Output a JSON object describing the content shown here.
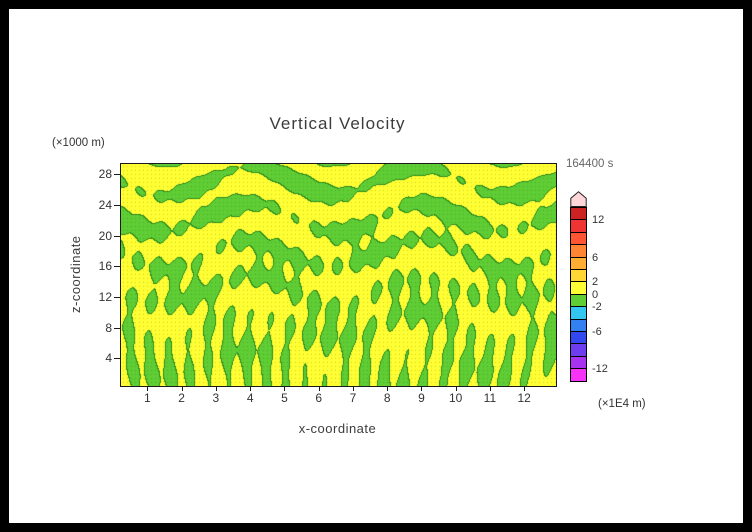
{
  "colors": {
    "frame": "#000000",
    "background": "#ffffff"
  },
  "chart": {
    "title": "Vertical Velocity",
    "time_label": "164400 s",
    "x_axis": {
      "label": "x-coordinate",
      "unit": "(×1E4 m)",
      "ticks": [
        "1",
        "2",
        "3",
        "4",
        "5",
        "6",
        "7",
        "8",
        "9",
        "10",
        "11",
        "12"
      ],
      "min": 0.2,
      "max": 12.9
    },
    "y_axis": {
      "label": "z-coordinate",
      "unit": "(×1000 m)",
      "ticks": [
        "4",
        "8",
        "12",
        "16",
        "20",
        "24",
        "28"
      ],
      "min": 0.5,
      "max": 29.5
    },
    "colorbar": {
      "tick_labels": [
        "12",
        "6",
        "2",
        "0",
        "-2",
        "-6",
        "-12"
      ],
      "tick_values": [
        12,
        6,
        2,
        0,
        -2,
        -6,
        -12
      ],
      "level_min": -14,
      "level_max": 14,
      "level_step": 2,
      "arrow_color": "#ffd6da",
      "colors_bottom_to_top": [
        "#f733f7",
        "#a733f0",
        "#6d3df0",
        "#3348f0",
        "#3380f0",
        "#33c6f0",
        "#5fce35",
        "#ffff33",
        "#ffd633",
        "#ffad33",
        "#ff8433",
        "#ff5533",
        "#f03333",
        "#cc2222"
      ]
    },
    "field_colors": {
      "positive": "#ffff33",
      "negative": "#5fce35",
      "contour_line": "#2e8f1f"
    }
  },
  "chart_data": {
    "type": "heatmap",
    "title": "Vertical Velocity",
    "time_label": "164400 s",
    "xlabel": "x-coordinate",
    "xunit": "(×1E4 m)",
    "ylabel": "z-coordinate",
    "yunit": "(×1000 m)",
    "xlim": [
      0.2,
      12.9
    ],
    "ylim": [
      0.5,
      29.5
    ],
    "x_ticks": [
      1,
      2,
      3,
      4,
      5,
      6,
      7,
      8,
      9,
      10,
      11,
      12
    ],
    "y_ticks": [
      4,
      8,
      12,
      16,
      20,
      24,
      28
    ],
    "contour_interval": 2,
    "levels": [
      -14,
      -12,
      -10,
      -8,
      -6,
      -4,
      -2,
      0,
      2,
      4,
      6,
      8,
      10,
      12,
      14
    ],
    "colorbar_tick_values": [
      12,
      6,
      2,
      0,
      -2,
      -6,
      -12
    ],
    "visible_value_range": [
      -2,
      2
    ],
    "field_description": "Filled-contour vertical velocity field at t=164400 s; only the -2..0 (green) and 0..2 (yellow) bands appear in the plot. Upper half shows horizontally layered wave bands, lower half shows narrow vertical plume streaks.",
    "pattern_params": {
      "k1": 140,
      "a1": 2.0,
      "m1": 6,
      "b1": 1.0,
      "c1": 0.9,
      "k2": 38,
      "a2": 2.5,
      "m2": 16,
      "b2": 0.15,
      "c2": 1.0,
      "a3": 0.5,
      "k3": 25,
      "m3": 12,
      "a4": 0.4,
      "k4": 9,
      "m4": 18,
      "threshold": -0.25
    }
  }
}
